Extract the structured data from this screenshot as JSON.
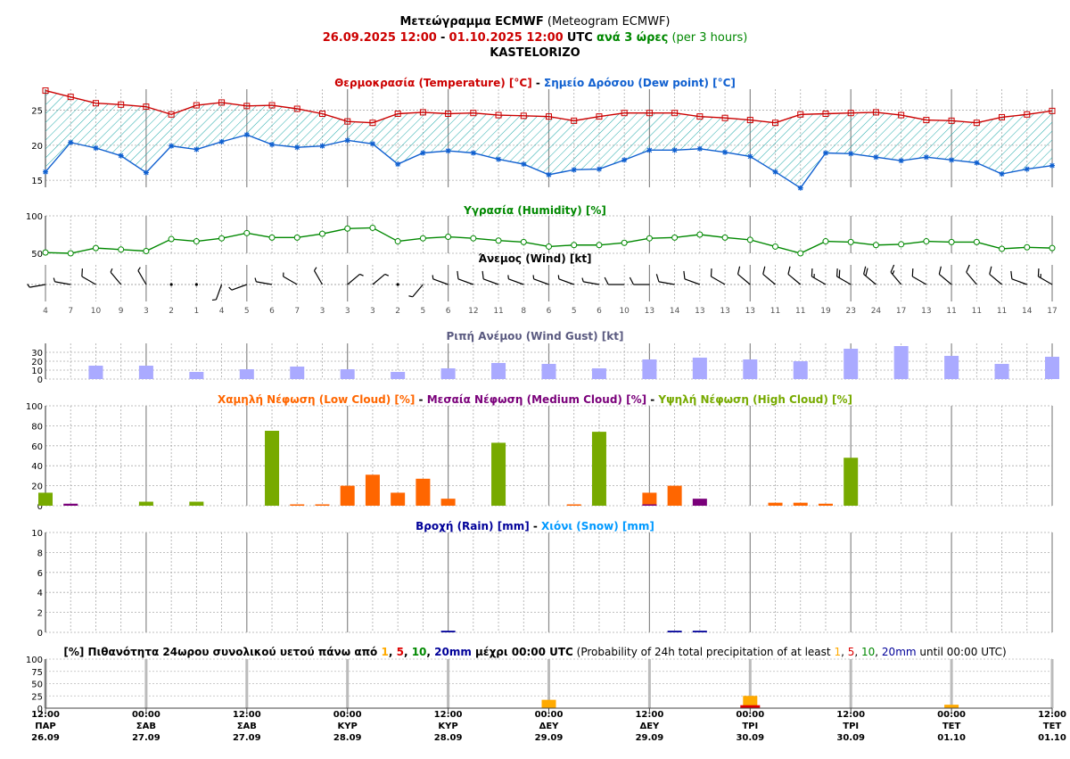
{
  "header": {
    "line1_bold": "Μετεώγραμμα ECMWF",
    "line1_normal": "(Meteogram ECMWF)",
    "start": "26.09.2025 12:00",
    "dash": "-",
    "end": "01.10.2025 12:00",
    "utc": "UTC",
    "step_bold": "ανά 3 ώρες",
    "step_normal": "(per 3 hours)",
    "location": "KASTELORIZO"
  },
  "colors": {
    "temperature": "#cc0000",
    "dewpoint": "#1060d0",
    "hatch": "#22aaaa",
    "humidity": "#008800",
    "gust": "#aaaaff",
    "low_cloud": "#ff6600",
    "medium_cloud": "#7a007a",
    "high_cloud": "#77aa00",
    "rain": "#000099",
    "snow": "#0099ff",
    "grid": "#999999",
    "prob_1": "#ffaa00",
    "prob_5": "#dd0000",
    "prob_10": "#008800",
    "prob_20": "#000099"
  },
  "chart_data": [
    {
      "type": "line",
      "id": "temperature",
      "title_parts": [
        {
          "t": "Θερμοκρασία (Temperature) [°C]",
          "c": "#cc0000"
        },
        {
          "t": " - ",
          "c": "#000000"
        },
        {
          "t": "Σημείο Δρόσου (Dew point) [°C]",
          "c": "#1060d0"
        }
      ],
      "ylim": [
        14,
        28
      ],
      "yticks": [
        "15",
        "20",
        "25"
      ],
      "ytick_values": [
        15,
        20,
        25
      ],
      "series": [
        {
          "name": "Θερμοκρασία (Temperature) [°C]",
          "values": [
            27.8,
            26.9,
            26.0,
            25.8,
            25.5,
            24.4,
            25.7,
            26.1,
            25.6,
            25.7,
            25.2,
            24.5,
            23.4,
            23.2,
            24.5,
            24.7,
            24.5,
            24.6,
            24.3,
            24.2,
            24.1,
            23.5,
            24.1,
            24.6,
            24.6,
            24.6,
            24.1,
            23.9,
            23.6,
            23.2,
            24.4,
            24.5,
            24.6,
            24.7,
            24.3,
            23.6,
            23.5,
            23.2,
            24.0,
            24.4,
            24.9
          ]
        },
        {
          "name": "Σημείο Δρόσου (Dew point) [°C]",
          "values": [
            16.2,
            20.4,
            19.6,
            18.5,
            16.1,
            19.9,
            19.4,
            20.5,
            21.5,
            20.1,
            19.7,
            19.9,
            20.7,
            20.2,
            17.3,
            18.9,
            19.2,
            18.9,
            18.0,
            17.3,
            15.8,
            16.5,
            16.6,
            17.9,
            19.3,
            19.3,
            19.5,
            19.0,
            18.4,
            16.2,
            13.9,
            18.9,
            18.8,
            18.3,
            17.8,
            18.3,
            17.9,
            17.5,
            15.9,
            16.6,
            17.1
          ]
        }
      ]
    },
    {
      "type": "line",
      "id": "humidity",
      "title_parts": [
        {
          "t": "Υγρασία (Humidity) [%]",
          "c": "#008800"
        }
      ],
      "ylim": [
        50,
        100
      ],
      "yticks": [
        "50",
        "100"
      ],
      "ytick_values": [
        50,
        100
      ],
      "series": [
        {
          "name": "Υγρασία (Humidity) [%]",
          "values": [
            51,
            50,
            57,
            55,
            53,
            69,
            66,
            70,
            77,
            71,
            71,
            76,
            83,
            84,
            66,
            70,
            72,
            70,
            67,
            65,
            59,
            61,
            61,
            64,
            70,
            71,
            75,
            71,
            68,
            59,
            50,
            66,
            65,
            61,
            62,
            66,
            65,
            65,
            56,
            58,
            57
          ]
        }
      ]
    },
    {
      "type": "wind",
      "id": "wind",
      "title": "Άνεμος (Wind) [kt]",
      "speeds": [
        "4",
        "7",
        "10",
        "9",
        "3",
        "2",
        "1",
        "4",
        "5",
        "6",
        "7",
        "3",
        "3",
        "3",
        "2",
        "5",
        "6",
        "12",
        "11",
        "8",
        "6",
        "5",
        "6",
        "10",
        "13",
        "14",
        "13",
        "13",
        "13",
        "11",
        "11",
        "19",
        "23",
        "24",
        "17",
        "13",
        "11",
        "11",
        "11",
        "14",
        "17"
      ],
      "directions_deg": [
        260,
        280,
        300,
        320,
        330,
        20,
        0,
        200,
        250,
        280,
        300,
        330,
        50,
        50,
        270,
        220,
        290,
        290,
        290,
        290,
        290,
        290,
        280,
        270,
        270,
        280,
        290,
        300,
        310,
        310,
        310,
        300,
        300,
        310,
        320,
        300,
        310,
        320,
        310,
        290,
        300
      ]
    },
    {
      "type": "bar",
      "id": "gust",
      "title_parts": [
        {
          "t": "Ριπή Ανέμου (Wind Gust) [kt]",
          "c": "#5a5a80"
        }
      ],
      "ylim": [
        0,
        40
      ],
      "yticks": [
        "0",
        "10",
        "20",
        "30"
      ],
      "ytick_values": [
        0,
        10,
        20,
        30
      ],
      "series": [
        {
          "name": "Ριπή Ανέμου (Wind Gust) [kt]",
          "values": [
            null,
            null,
            15,
            null,
            15,
            null,
            8,
            null,
            11,
            null,
            14,
            null,
            11,
            null,
            8,
            null,
            12,
            null,
            18,
            null,
            17,
            null,
            12,
            null,
            22,
            null,
            24,
            null,
            22,
            null,
            20,
            null,
            34,
            null,
            37,
            null,
            26,
            null,
            17,
            null,
            25
          ]
        }
      ]
    },
    {
      "type": "bar",
      "id": "clouds",
      "title_parts": [
        {
          "t": "Χαμηλή Νέφωση (Low Cloud) [%]",
          "c": "#ff6600"
        },
        {
          "t": " - ",
          "c": "#000000"
        },
        {
          "t": "Μεσαία Νέφωση (Medium Cloud) [%]",
          "c": "#7a007a"
        },
        {
          "t": " - ",
          "c": "#000000"
        },
        {
          "t": "Υψηλή Νέφωση (High Cloud) [%]",
          "c": "#77aa00"
        }
      ],
      "ylim": [
        0,
        100
      ],
      "yticks": [
        "0",
        "20",
        "40",
        "60",
        "80",
        "100"
      ],
      "ytick_values": [
        0,
        20,
        40,
        60,
        80,
        100
      ],
      "series": [
        {
          "name": "Χαμηλή Νέφωση (Low Cloud) [%]",
          "values": [
            0,
            0,
            0,
            0,
            0,
            0,
            0,
            0,
            0,
            0,
            1,
            1,
            20,
            31,
            13,
            27,
            7,
            0,
            0,
            0,
            0,
            1,
            0,
            0,
            13,
            20,
            0,
            0,
            0,
            3,
            3,
            2,
            0,
            0,
            0,
            0,
            0,
            0,
            0,
            0,
            0
          ]
        },
        {
          "name": "Μεσαία Νέφωση (Medium Cloud) [%]",
          "values": [
            1,
            2,
            0,
            0,
            0,
            0,
            0,
            0,
            0,
            0,
            0,
            0,
            0,
            0,
            0,
            0,
            0,
            0,
            0,
            0,
            0,
            0,
            0,
            0,
            1,
            0,
            7,
            0,
            0,
            0,
            0,
            0,
            0,
            0,
            0,
            0,
            0,
            0,
            0,
            0,
            0
          ]
        },
        {
          "name": "Υψηλή Νέφωση (High Cloud) [%]",
          "values": [
            13,
            0,
            0,
            0,
            4,
            0,
            4,
            0,
            0,
            75,
            0,
            0,
            0,
            0,
            0,
            0,
            0,
            0,
            63,
            0,
            0,
            0,
            74,
            0,
            0,
            0,
            0,
            0,
            0,
            0,
            0,
            0,
            48,
            0,
            0,
            0,
            0,
            0,
            0,
            0,
            0
          ]
        }
      ]
    },
    {
      "type": "bar",
      "id": "precip",
      "title_parts": [
        {
          "t": "Βροχή (Rain) [mm]",
          "c": "#000099"
        },
        {
          "t": " - ",
          "c": "#000000"
        },
        {
          "t": "Χιόνι (Snow) [mm]",
          "c": "#0099ff"
        }
      ],
      "ylim": [
        0,
        10
      ],
      "yticks": [
        "0",
        "2",
        "4",
        "6",
        "8",
        "10"
      ],
      "ytick_values": [
        0,
        2,
        4,
        6,
        8,
        10
      ],
      "series": [
        {
          "name": "Βροχή (Rain) [mm]",
          "values": [
            0,
            0,
            0,
            0,
            0,
            0,
            0,
            0,
            0,
            0,
            0,
            0,
            0,
            0,
            0,
            0,
            0.05,
            0,
            0,
            0,
            0,
            0,
            0,
            0,
            0,
            0.07,
            0.15,
            0,
            0,
            0,
            0,
            0,
            0,
            0,
            0,
            0,
            0,
            0,
            0,
            0,
            0
          ]
        },
        {
          "name": "Χιόνι (Snow) [mm]",
          "values": [
            0,
            0,
            0,
            0,
            0,
            0,
            0,
            0,
            0,
            0,
            0,
            0,
            0,
            0,
            0,
            0,
            0,
            0,
            0,
            0,
            0,
            0,
            0,
            0,
            0,
            0,
            0,
            0,
            0,
            0,
            0,
            0,
            0,
            0,
            0,
            0,
            0,
            0,
            0,
            0,
            0
          ]
        }
      ]
    },
    {
      "type": "bar",
      "id": "probability",
      "title_parts": [
        {
          "t": "[%] Πιθανότητα 24ωρου συνολικού υετού πάνω από ",
          "c": "#000000",
          "b": true
        },
        {
          "t": "1",
          "c": "#ffaa00",
          "b": true
        },
        {
          "t": ", ",
          "c": "#000000",
          "b": true
        },
        {
          "t": "5",
          "c": "#dd0000",
          "b": true
        },
        {
          "t": ", ",
          "c": "#000000",
          "b": true
        },
        {
          "t": "10",
          "c": "#008800",
          "b": true
        },
        {
          "t": ", ",
          "c": "#000000",
          "b": true
        },
        {
          "t": "20mm",
          "c": "#000099",
          "b": true
        },
        {
          "t": " μέχρι 00:00 UTC",
          "c": "#000000",
          "b": true
        },
        {
          "t": " (Probability of 24h total precipitation of at least ",
          "c": "#000000",
          "b": false
        },
        {
          "t": "1",
          "c": "#ffaa00",
          "b": false
        },
        {
          "t": ", ",
          "c": "#000000",
          "b": false
        },
        {
          "t": "5",
          "c": "#dd0000",
          "b": false
        },
        {
          "t": ", ",
          "c": "#000000",
          "b": false
        },
        {
          "t": "10",
          "c": "#008800",
          "b": false
        },
        {
          "t": ", ",
          "c": "#000000",
          "b": false
        },
        {
          "t": "20mm",
          "c": "#000099",
          "b": false
        },
        {
          "t": " until 00:00 UTC)",
          "c": "#000000",
          "b": false
        }
      ],
      "ylim": [
        0,
        100
      ],
      "yticks": [
        "0",
        "25",
        "50",
        "75",
        "100"
      ],
      "ytick_values": [
        0,
        25,
        50,
        75,
        100
      ],
      "bars": [
        {
          "x_index": 20,
          "p1": 17,
          "p5": 0
        },
        {
          "x_index": 28,
          "p1": 25,
          "p5": 6
        },
        {
          "x_index": 36,
          "p1": 7,
          "p5": 0
        }
      ]
    }
  ],
  "x_axis": {
    "labels": [
      {
        "i": 0,
        "time": "12:00",
        "day": "ΠΑΡ",
        "date": "26.09"
      },
      {
        "i": 4,
        "time": "00:00",
        "day": "ΣΑΒ",
        "date": "27.09"
      },
      {
        "i": 8,
        "time": "12:00",
        "day": "ΣΑΒ",
        "date": "27.09"
      },
      {
        "i": 12,
        "time": "00:00",
        "day": "ΚΥΡ",
        "date": "28.09"
      },
      {
        "i": 16,
        "time": "12:00",
        "day": "ΚΥΡ",
        "date": "28.09"
      },
      {
        "i": 20,
        "time": "00:00",
        "day": "ΔΕΥ",
        "date": "29.09"
      },
      {
        "i": 24,
        "time": "12:00",
        "day": "ΔΕΥ",
        "date": "29.09"
      },
      {
        "i": 28,
        "time": "00:00",
        "day": "ΤΡΙ",
        "date": "30.09"
      },
      {
        "i": 32,
        "time": "12:00",
        "day": "ΤΡΙ",
        "date": "30.09"
      },
      {
        "i": 36,
        "time": "00:00",
        "day": "ΤΕΤ",
        "date": "01.10"
      },
      {
        "i": 40,
        "time": "12:00",
        "day": "ΤΕΤ",
        "date": "01.10"
      }
    ]
  }
}
